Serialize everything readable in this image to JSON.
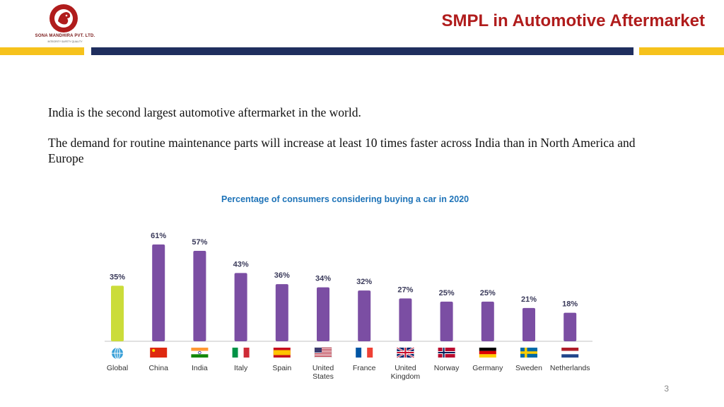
{
  "header": {
    "title": "SMPL in Automotive Aftermarket",
    "logo_name": "SONA MANDHIRA PVT. LTD.",
    "logo_tagline": "INTEGRITY   SAFETY   QUALITY"
  },
  "body": {
    "line1": "India is the second largest automotive aftermarket in the world.",
    "line2": "The demand for routine maintenance parts will increase at least 10 times faster across India than in North America and Europe"
  },
  "colors": {
    "accent_red": "#b01c1c",
    "bar_yellow": "#f6c21c",
    "bar_navy": "#1f2e5e",
    "chart_title_blue": "#1e73b8",
    "global_bar": "#cbdc3a",
    "country_bar": "#7b4ea3"
  },
  "chart_data": {
    "type": "bar",
    "title": "Percentage of consumers considering buying a car in 2020",
    "xlabel": "",
    "ylabel": "",
    "ylim": [
      0,
      61
    ],
    "grid": false,
    "categories": [
      "Global",
      "China",
      "India",
      "Italy",
      "Spain",
      "United States",
      "France",
      "United Kingdom",
      "Norway",
      "Germany",
      "Sweden",
      "Netherlands"
    ],
    "values": [
      35,
      61,
      57,
      43,
      36,
      34,
      32,
      27,
      25,
      25,
      21,
      18
    ],
    "data_labels": [
      "35%",
      "61%",
      "57%",
      "43%",
      "36%",
      "34%",
      "32%",
      "27%",
      "25%",
      "25%",
      "21%",
      "18%"
    ],
    "icons": [
      "globe-icon",
      "china-flag-icon",
      "india-flag-icon",
      "italy-flag-icon",
      "spain-flag-icon",
      "usa-flag-icon",
      "france-flag-icon",
      "uk-flag-icon",
      "norway-flag-icon",
      "germany-flag-icon",
      "sweden-flag-icon",
      "netherlands-flag-icon"
    ]
  },
  "footer": {
    "page_number": "3"
  }
}
